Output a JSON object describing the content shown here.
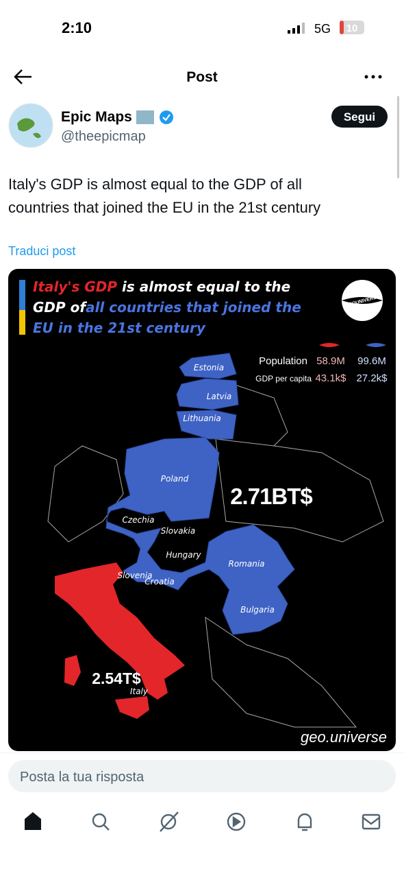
{
  "status_bar": {
    "time": "2:10",
    "network": "5G",
    "battery": "10"
  },
  "header": {
    "title": "Post"
  },
  "author": {
    "name": "Epic Maps",
    "handle": "@theepicmap",
    "follow": "Segui"
  },
  "post": {
    "text_lines": [
      "Italy's GDP is almost equal to the GDP of all",
      "countries that joined the EU in the 21st century"
    ],
    "translate": "Traduci post"
  },
  "image": {
    "title_segments": [
      "Italy's GDP",
      " is almost equal to the",
      "GDP of",
      "all countries that joined the",
      "EU in the 21st century"
    ],
    "logo": "GEOUNIVERSE",
    "legend": {
      "rows": [
        [
          "Population",
          "58.9M",
          "99.6M"
        ],
        [
          "GDP per capita",
          "43.1k$",
          "27.2k$"
        ]
      ]
    },
    "countries": [
      "Estonia",
      "Latvia",
      "Lithuania",
      "Poland",
      "Czechia",
      "Slovakia",
      "Hungary",
      "Slovenia",
      "Croatia",
      "Romania",
      "Bulgaria"
    ],
    "blue_total": "2.71BT$",
    "red_total": "2.54T$",
    "red_label": "Italy",
    "watermark": "geo.universe"
  },
  "reply": {
    "placeholder": "Posta la tua risposta"
  }
}
